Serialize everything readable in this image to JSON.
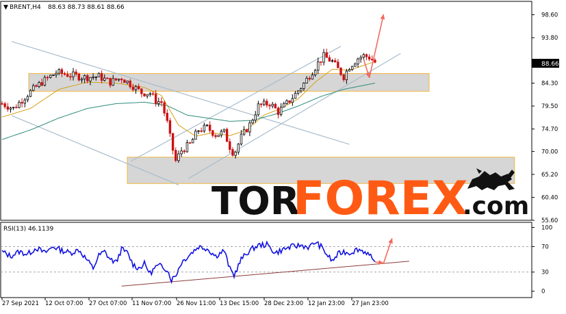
{
  "header": {
    "symbol_label": "BRENT,H4",
    "ohlc_text": "88.63 88.73 88.61 88.66",
    "dropdown_glyph": "▼"
  },
  "chart_data": [
    {
      "type": "candlestick",
      "title": "BRENT,H4",
      "ylim": [
        55.6,
        101.4
      ],
      "y_ticks": [
        "98.60",
        "93.80",
        "84.30",
        "79.50",
        "74.70",
        "70.00",
        "65.20",
        "60.40",
        "55.60"
      ],
      "last_price_label": "88.66",
      "x_ticks": [
        "27 Sep 2021",
        "12 Oct 07:00",
        "27 Oct 07:00",
        "11 Nov 07:00",
        "26 Nov 11:00",
        "13 Dec 15:00",
        "28 Dec 23:00",
        "12 Jan 23:00",
        "27 Jan 23:00"
      ],
      "price_path": [
        [
          0,
          80.0
        ],
        [
          4,
          79.0
        ],
        [
          9,
          82.0
        ],
        [
          14,
          84.5
        ],
        [
          19,
          86.5
        ],
        [
          24,
          86.0
        ],
        [
          29,
          85.5
        ],
        [
          34,
          85.7
        ],
        [
          38,
          84.5
        ],
        [
          42,
          85.4
        ],
        [
          46,
          83.7
        ],
        [
          49,
          82.3
        ],
        [
          52,
          82.2
        ],
        [
          54,
          80.6
        ],
        [
          56,
          80.3
        ],
        [
          58,
          76.0
        ],
        [
          59.5,
          71.5
        ],
        [
          61,
          68.0
        ],
        [
          63,
          70.2
        ],
        [
          66,
          71.5
        ],
        [
          69,
          74.5
        ],
        [
          72,
          75.0
        ],
        [
          75,
          73.5
        ],
        [
          78,
          74.0
        ],
        [
          80,
          71.0
        ],
        [
          81.5,
          69.4
        ],
        [
          84,
          73.0
        ],
        [
          87,
          75.6
        ],
        [
          90,
          79.5
        ],
        [
          94,
          80.1
        ],
        [
          97,
          78.3
        ],
        [
          100,
          80.0
        ],
        [
          103,
          82.0
        ],
        [
          106,
          84.2
        ],
        [
          109,
          86.8
        ],
        [
          111,
          88.5
        ],
        [
          113,
          89.9
        ],
        [
          116,
          88.8
        ],
        [
          118,
          87.2
        ],
        [
          120,
          85.7
        ],
        [
          122,
          87.8
        ],
        [
          125,
          89.5
        ],
        [
          127,
          90.0
        ],
        [
          129,
          89.7
        ],
        [
          131,
          88.66
        ]
      ],
      "series": [
        {
          "name": "",
          "color": "#d4a017",
          "values": [
            [
              0,
              77.2
            ],
            [
              10,
              79.0
            ],
            [
              20,
              83.0
            ],
            [
              30,
              84.5
            ],
            [
              40,
              84.3
            ],
            [
              50,
              83.4
            ],
            [
              56,
              81.7
            ],
            [
              62,
              75.5
            ],
            [
              68,
              73.2
            ],
            [
              74,
              73.9
            ],
            [
              80,
              73.3
            ],
            [
              86,
              74.5
            ],
            [
              92,
              77.6
            ],
            [
              98,
              79.0
            ],
            [
              104,
              81.0
            ],
            [
              110,
              84.5
            ],
            [
              116,
              87.2
            ],
            [
              122,
              87.0
            ],
            [
              131,
              88.8
            ]
          ]
        },
        {
          "name": "",
          "color": "#2e8b7a",
          "values": [
            [
              0,
              72.5
            ],
            [
              10,
              74.5
            ],
            [
              20,
              77.0
            ],
            [
              30,
              79.0
            ],
            [
              40,
              80.0
            ],
            [
              50,
              80.3
            ],
            [
              58,
              79.6
            ],
            [
              65,
              77.6
            ],
            [
              72,
              77.0
            ],
            [
              80,
              76.3
            ],
            [
              88,
              76.5
            ],
            [
              96,
              77.8
            ],
            [
              104,
              79.5
            ],
            [
              112,
              81.5
            ],
            [
              120,
              83.0
            ],
            [
              131,
              84.3
            ]
          ]
        }
      ],
      "zones": [
        {
          "from": 82.6,
          "to": 86.3,
          "x_end": 150
        },
        {
          "from": 63.3,
          "to": 68.8,
          "x_end": 180
        }
      ],
      "trend_lines": [
        [
          [
            0,
            93.0
          ],
          [
            122,
            71.5
          ]
        ],
        [
          [
            0,
            77.5
          ],
          [
            62,
            63.0
          ]
        ],
        [
          [
            42,
            68.0
          ],
          [
            119,
            92.0
          ]
        ],
        [
          [
            62,
            64.3
          ],
          [
            140,
            90.5
          ]
        ]
      ],
      "forecast_arrows": [
        {
          "from": [
            127,
            89.3
          ],
          "to": [
            129,
            85.4
          ]
        },
        {
          "from": [
            129,
            85.4
          ],
          "to": [
            134,
            98.7
          ]
        }
      ]
    },
    {
      "type": "line",
      "title": "RSI(13) 46.1139",
      "ylim": [
        -10,
        108
      ],
      "y_ticks": [
        "100",
        "70",
        "30",
        "0"
      ],
      "series": [
        {
          "name": "",
          "color": "#1010e0",
          "values": [
            [
              0,
              62
            ],
            [
              3,
              55
            ],
            [
              6,
              62
            ],
            [
              9,
              58
            ],
            [
              12,
              68
            ],
            [
              15,
              60
            ],
            [
              18,
              70
            ],
            [
              21,
              64
            ],
            [
              24,
              60
            ],
            [
              27,
              65
            ],
            [
              30,
              48
            ],
            [
              32,
              36
            ],
            [
              34,
              56
            ],
            [
              36,
              62
            ],
            [
              38,
              50
            ],
            [
              40,
              45
            ],
            [
              42,
              66
            ],
            [
              44,
              60
            ],
            [
              46,
              42
            ],
            [
              48,
              36
            ],
            [
              50,
              43
            ],
            [
              52,
              28
            ],
            [
              54,
              38
            ],
            [
              56,
              40
            ],
            [
              58,
              34
            ],
            [
              59.5,
              18
            ],
            [
              61,
              25
            ],
            [
              63,
              45
            ],
            [
              66,
              58
            ],
            [
              69,
              70
            ],
            [
              72,
              67
            ],
            [
              75,
              55
            ],
            [
              78,
              64
            ],
            [
              80,
              35
            ],
            [
              81.5,
              25
            ],
            [
              84,
              50
            ],
            [
              87,
              64
            ],
            [
              90,
              72
            ],
            [
              93,
              73
            ],
            [
              96,
              60
            ],
            [
              99,
              66
            ],
            [
              102,
              70
            ],
            [
              105,
              72
            ],
            [
              108,
              69
            ],
            [
              110,
              77
            ],
            [
              112,
              70
            ],
            [
              114,
              58
            ],
            [
              116,
              47
            ],
            [
              118,
              58
            ],
            [
              120,
              62
            ],
            [
              122,
              60
            ],
            [
              125,
              66
            ],
            [
              128,
              61
            ],
            [
              131,
              46.1
            ]
          ]
        }
      ],
      "levels": [
        70,
        30
      ],
      "trend_lines": [
        [
          [
            42,
            8
          ],
          [
            143,
            47
          ]
        ]
      ],
      "forecast_arrows": [
        {
          "from": [
            131,
            46
          ],
          "to": [
            134,
            44
          ]
        },
        {
          "from": [
            134,
            44
          ],
          "to": [
            137,
            83
          ]
        }
      ]
    }
  ],
  "rsi_header": "RSI(13) 46.1139",
  "watermark": {
    "part1": "TOR",
    "part2": "FOREX",
    "part3": ".com"
  },
  "colors": {
    "bull_candle": "#000000",
    "bear_candle": "#cc1111",
    "zone_fill": "#d6d6d6",
    "zone_border": "#f0b43c",
    "trend_line": "#a8bccc",
    "rsi_trend": "#8b3a3a",
    "arrow": "#f36a5e",
    "watermark_dark": "#111111",
    "watermark_accent": "#ff5a14"
  }
}
